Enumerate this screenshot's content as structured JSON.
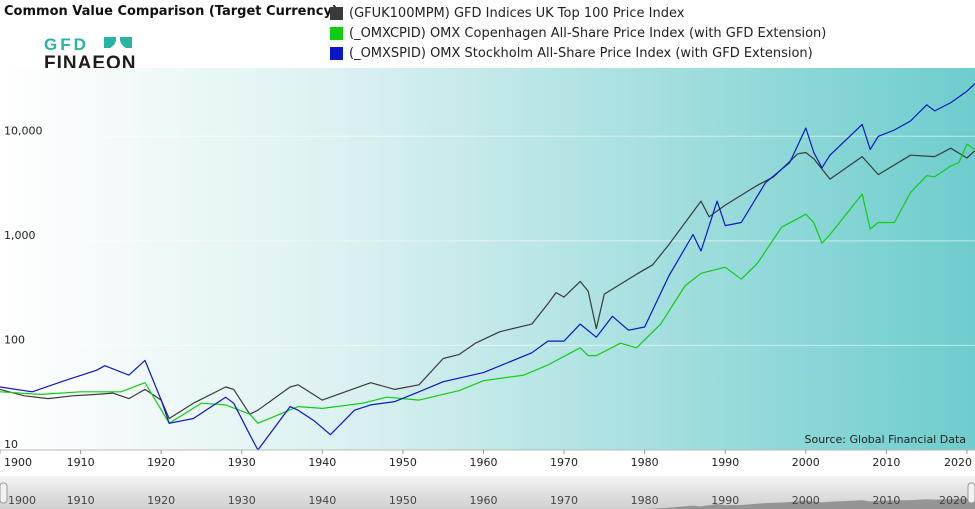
{
  "header": {
    "title": "Common Value Comparison (Target Currency)",
    "logo_text_top": "GFD",
    "logo_text_bottom": "FINAEON"
  },
  "chart_data": {
    "type": "line",
    "title": "Common Value Comparison (Target Currency)",
    "xlabel": "",
    "ylabel": "",
    "xlim": [
      1900,
      2021
    ],
    "ylim": [
      10,
      45000
    ],
    "yscale": "log",
    "grid": "horizontal",
    "legend_placement": "top",
    "x_ticks": [
      "1900",
      "1910",
      "1920",
      "1930",
      "1940",
      "1950",
      "1960",
      "1970",
      "1980",
      "1990",
      "2000",
      "2010",
      "2020"
    ],
    "y_ticks": [
      {
        "value": 10,
        "label": "10"
      },
      {
        "value": 100,
        "label": "100"
      },
      {
        "value": 1000,
        "label": "1,000"
      },
      {
        "value": 10000,
        "label": "10,000"
      }
    ],
    "annotation": "Source: Global Financial Data",
    "navigator_ticks": [
      "1900",
      "1910",
      "1920",
      "1930",
      "1940",
      "1950",
      "1960",
      "1970",
      "1980",
      "1990",
      "2000",
      "2010",
      "2020"
    ],
    "series": [
      {
        "name": "(GFUK100MPM) GFD Indices UK Top 100 Price Index",
        "color": "#3a3a3a",
        "x": [
          1900,
          1903,
          1906,
          1909,
          1912,
          1914,
          1916,
          1918,
          1920,
          1921,
          1924,
          1928,
          1929,
          1931,
          1932,
          1936,
          1937,
          1940,
          1946,
          1949,
          1952,
          1955,
          1957,
          1959,
          1962,
          1966,
          1968,
          1969,
          1970,
          1972,
          1973,
          1974,
          1975,
          1979,
          1981,
          1983,
          1987,
          1988,
          1990,
          1994,
          1996,
          1999,
          2000,
          2001,
          2003,
          2007,
          2009,
          2013,
          2016,
          2018,
          2020,
          2021
        ],
        "y": [
          38,
          33,
          31,
          33,
          34,
          35,
          31,
          38,
          30,
          20,
          28,
          40,
          38,
          22,
          24,
          40,
          42,
          30,
          44,
          38,
          42,
          75,
          82,
          105,
          135,
          160,
          250,
          320,
          290,
          410,
          330,
          145,
          310,
          480,
          590,
          920,
          2400,
          1700,
          2200,
          3400,
          4100,
          6800,
          7000,
          6100,
          3900,
          6400,
          4300,
          6600,
          6400,
          7700,
          6200,
          7300
        ]
      },
      {
        "name": "(_OMXCPID) OMX Copenhagen All-Share Price Index (with GFD Extension)",
        "color": "#11cc11",
        "x": [
          1900,
          1905,
          1910,
          1915,
          1918,
          1921,
          1925,
          1928,
          1931,
          1932,
          1937,
          1940,
          1945,
          1948,
          1952,
          1957,
          1960,
          1965,
          1968,
          1972,
          1973,
          1974,
          1977,
          1979,
          1982,
          1985,
          1987,
          1990,
          1992,
          1994,
          1997,
          2000,
          2001,
          2002,
          2003,
          2007,
          2008,
          2009,
          2011,
          2013,
          2015,
          2016,
          2018,
          2019,
          2020,
          2021
        ],
        "y": [
          36,
          34,
          36,
          36,
          44,
          18,
          28,
          27,
          22,
          18,
          26,
          25,
          28,
          32,
          30,
          37,
          46,
          52,
          65,
          95,
          80,
          80,
          105,
          95,
          160,
          370,
          490,
          560,
          430,
          610,
          1350,
          1800,
          1500,
          950,
          1150,
          2800,
          1300,
          1500,
          1500,
          2900,
          4200,
          4100,
          5200,
          5600,
          8400,
          7500
        ]
      },
      {
        "name": "(_OMXSPID) OMX Stockholm All-Share Price Index (with GFD Extension)",
        "color": "#0a17c4",
        "x": [
          1900,
          1904,
          1908,
          1912,
          1913,
          1916,
          1918,
          1920,
          1921,
          1924,
          1928,
          1929,
          1931,
          1932,
          1936,
          1937,
          1939,
          1941,
          1944,
          1946,
          1949,
          1952,
          1955,
          1960,
          1966,
          1968,
          1970,
          1972,
          1974,
          1976,
          1978,
          1980,
          1983,
          1986,
          1987,
          1989,
          1990,
          1992,
          1995,
          1998,
          2000,
          2001,
          2002,
          2003,
          2007,
          2008,
          2009,
          2011,
          2013,
          2015,
          2016,
          2018,
          2020,
          2021
        ],
        "y": [
          40,
          36,
          46,
          58,
          64,
          52,
          72,
          30,
          18,
          20,
          32,
          28,
          14,
          10,
          26,
          24,
          19,
          14,
          24,
          27,
          29,
          36,
          45,
          55,
          85,
          110,
          110,
          160,
          120,
          190,
          140,
          150,
          460,
          1150,
          800,
          2400,
          1400,
          1500,
          3600,
          5600,
          12000,
          7000,
          5000,
          6600,
          13000,
          7500,
          10000,
          11500,
          14000,
          20000,
          17500,
          21000,
          27000,
          32000
        ]
      }
    ]
  }
}
